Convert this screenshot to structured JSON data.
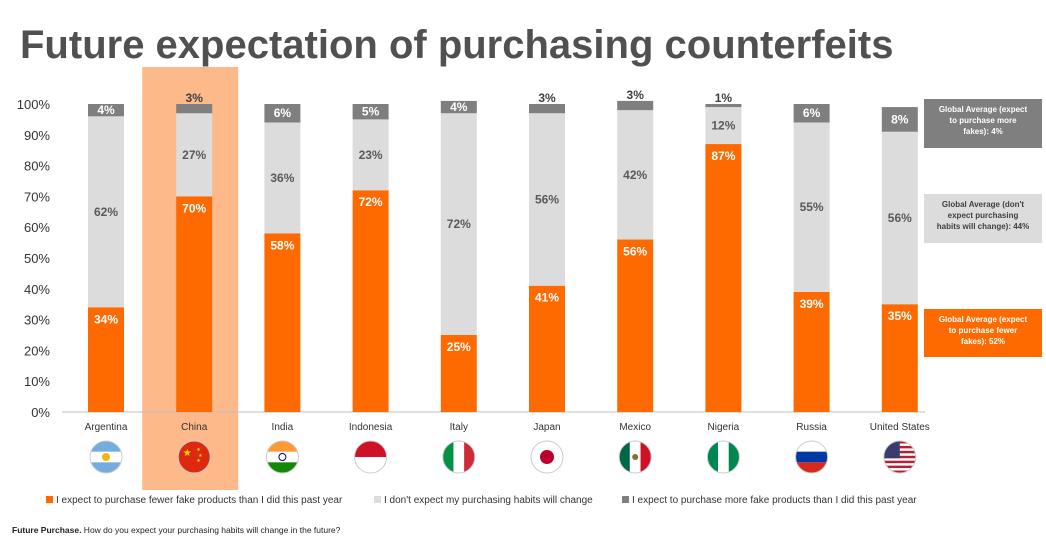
{
  "title": "Future expectation of purchasing counterfeits",
  "chart_data": {
    "type": "bar",
    "stacked": true,
    "title": "Future expectation of purchasing counterfeits",
    "ylim": [
      0,
      100
    ],
    "yticks": [
      "0%",
      "10%",
      "20%",
      "30%",
      "40%",
      "50%",
      "60%",
      "70%",
      "80%",
      "90%",
      "100%"
    ],
    "categories": [
      "Argentina",
      "China",
      "India",
      "Indonesia",
      "Italy",
      "Japan",
      "Mexico",
      "Nigeria",
      "Russia",
      "United States"
    ],
    "highlight": "China",
    "series": [
      {
        "name": "I expect to purchase fewer fake products than I did this past year",
        "color": "#FF6A00",
        "label_color": "#ffffff",
        "values": [
          34,
          70,
          58,
          72,
          25,
          41,
          56,
          87,
          39,
          35
        ],
        "labels": [
          "34%",
          "70%",
          "58%",
          "72%",
          "25%",
          "41%",
          "56%",
          "87%",
          "39%",
          "35%"
        ]
      },
      {
        "name": "I don't expect my purchasing habits will change",
        "color": "#DCDCDC",
        "label_color": "#595959",
        "values": [
          62,
          27,
          36,
          23,
          72,
          56,
          42,
          12,
          55,
          56
        ],
        "labels": [
          "62%",
          "27%",
          "36%",
          "23%",
          "72%",
          "56%",
          "42%",
          "12%",
          "55%",
          "56%"
        ]
      },
      {
        "name": "I expect to purchase more fake products than I did this past year",
        "color": "#7F7F7F",
        "label_color": "#ffffff",
        "values": [
          4,
          3,
          6,
          5,
          4,
          3,
          3,
          1,
          6,
          8
        ],
        "labels": [
          "4%",
          "3%",
          "6%",
          "5%",
          "4%",
          "3%",
          "3%",
          "1%",
          "6%",
          "8%"
        ]
      }
    ],
    "flags": [
      "argentina-flag-icon",
      "china-flag-icon",
      "india-flag-icon",
      "indonesia-flag-icon",
      "italy-flag-icon",
      "japan-flag-icon",
      "mexico-flag-icon",
      "nigeria-flag-icon",
      "russia-flag-icon",
      "united-states-flag-icon"
    ]
  },
  "global_averages": [
    {
      "text_lines": [
        "Global Average (expect",
        "to purchase more",
        "fakes): 4%"
      ],
      "bg": "#7F7F7F",
      "fg": "#ffffff"
    },
    {
      "text_lines": [
        "Global Average (don't",
        "expect purchasing",
        "habits will change): 44%"
      ],
      "bg": "#DCDCDC",
      "fg": "#404040"
    },
    {
      "text_lines": [
        "Global Average (expect",
        "to purchase fewer",
        "fakes): 52%"
      ],
      "bg": "#FF6A00",
      "fg": "#ffffff"
    }
  ],
  "footnote": {
    "bold": "Future Purchase.",
    "text": " How do you expect your purchasing habits will change in the future?"
  }
}
